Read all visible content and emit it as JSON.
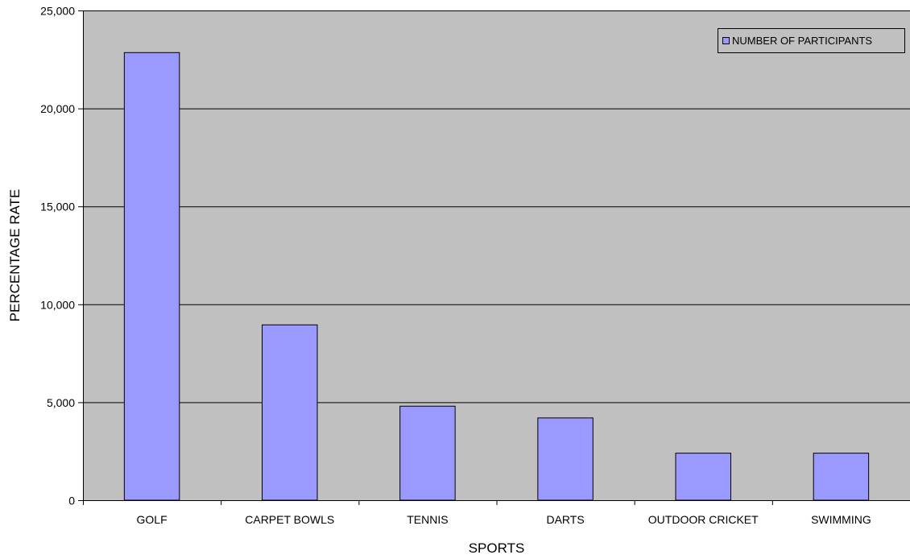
{
  "chart_data": {
    "type": "bar",
    "title": "",
    "xlabel": "SPORTS",
    "ylabel": "PERCENTAGE RATE",
    "categories": [
      "GOLF",
      "CARPET BOWLS",
      "TENNIS",
      "DARTS",
      "OUTDOOR CRICKET",
      "SWIMMING"
    ],
    "series": [
      {
        "name": "NUMBER OF PARTICIPANTS",
        "values": [
          22850,
          8950,
          4800,
          4200,
          2400,
          2400
        ]
      }
    ],
    "ylim": [
      0,
      25000
    ],
    "yticks": [
      0,
      5000,
      10000,
      15000,
      20000,
      25000
    ],
    "ytick_labels": [
      "0",
      "5,000",
      "10,000",
      "15,000",
      "20,000",
      "25,000"
    ],
    "grid": true,
    "legend_position": "top-right",
    "colors": {
      "plot_background": "#c0c0c0",
      "bar_fill": "#9999ff",
      "bar_stroke": "#000000",
      "gridline": "#000000"
    }
  }
}
